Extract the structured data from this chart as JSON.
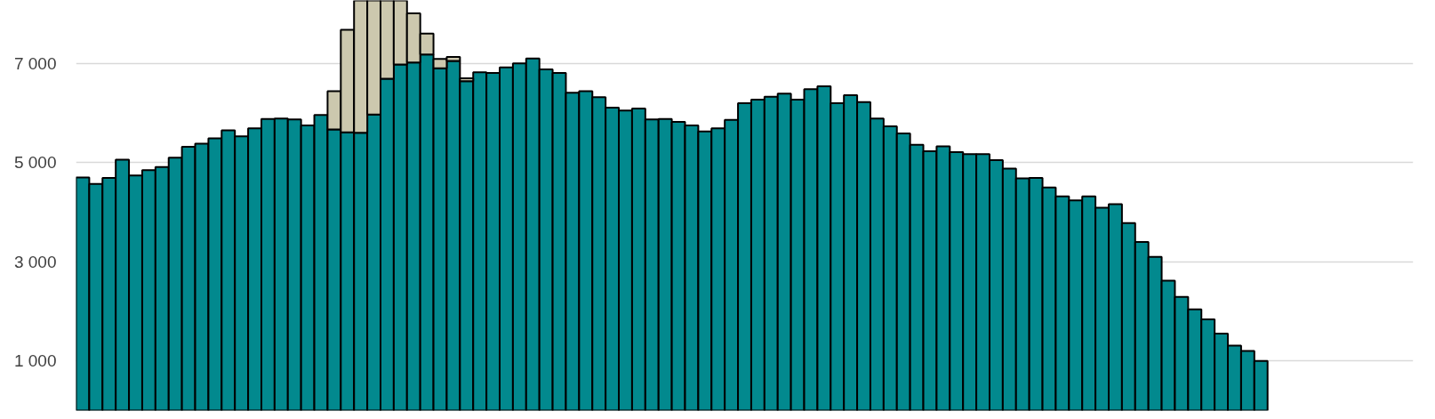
{
  "chart_data": {
    "type": "bar",
    "stacked": true,
    "categories": [
      null,
      null,
      null,
      null,
      null,
      null,
      null,
      null,
      null,
      null,
      null,
      null,
      null,
      null,
      null,
      null,
      null,
      null,
      null,
      null,
      null,
      null,
      null,
      null,
      null,
      null,
      null,
      null,
      null,
      null,
      null,
      null,
      null,
      null,
      null,
      null,
      null,
      null,
      null,
      null,
      null,
      null,
      null,
      null,
      null,
      null,
      null,
      null,
      null,
      null,
      null,
      null,
      null,
      null,
      null,
      null,
      null,
      null,
      null,
      null,
      null,
      null,
      null,
      null,
      null,
      null,
      null,
      null,
      null,
      null,
      null,
      null,
      null,
      null,
      null,
      null,
      null,
      null,
      null,
      null,
      null,
      null,
      null,
      null,
      null,
      null,
      null,
      null,
      null,
      null,
      null,
      null,
      null,
      null,
      null,
      null,
      null,
      null,
      null,
      null,
      null
    ],
    "series": [
      {
        "color": "#02898e",
        "values": [
          4700,
          4570,
          4690,
          5060,
          4740,
          4850,
          4910,
          5100,
          5320,
          5380,
          5490,
          5650,
          5530,
          5690,
          5880,
          5890,
          5870,
          5750,
          5960,
          5670,
          5610,
          5600,
          5970,
          6690,
          6980,
          7020,
          7180,
          6900,
          7050,
          6640,
          6820,
          6810,
          6920,
          7000,
          7100,
          6880,
          6810,
          6410,
          6440,
          6320,
          6110,
          6050,
          6090,
          5870,
          5880,
          5820,
          5750,
          5630,
          5690,
          5860,
          6200,
          6270,
          6330,
          6390,
          6270,
          6480,
          6540,
          6200,
          6360,
          6220,
          5890,
          5730,
          5590,
          5360,
          5230,
          5330,
          5210,
          5170,
          5170,
          5050,
          4880,
          4680,
          4690,
          4500,
          4320,
          4240,
          4320,
          4090,
          4160,
          3780,
          3400,
          3100,
          2620,
          2290,
          2040,
          1840,
          1550,
          1310,
          1200,
          1000,
          null,
          null,
          null,
          null,
          null,
          null,
          null,
          null,
          null,
          null,
          null
        ]
      },
      {
        "color": "#ccc8ae",
        "values": [
          null,
          null,
          null,
          null,
          null,
          null,
          null,
          null,
          null,
          null,
          null,
          null,
          null,
          null,
          null,
          null,
          null,
          null,
          null,
          770,
          2070,
          2670,
          2300,
          1580,
          1290,
          990,
          420,
          190,
          80,
          60,
          null,
          null,
          null,
          null,
          null,
          null,
          null,
          null,
          null,
          null,
          null,
          null,
          null,
          null,
          null,
          null,
          null,
          null,
          null,
          null,
          null,
          null,
          null,
          null,
          null,
          null,
          null,
          null,
          null,
          null,
          null,
          null,
          null,
          null,
          null,
          null,
          null,
          null,
          null,
          null,
          null,
          null,
          null,
          null,
          null,
          null,
          null,
          null,
          null,
          null,
          null,
          null,
          null,
          null,
          null,
          null,
          null,
          null,
          null,
          null,
          null,
          null,
          null,
          null,
          null,
          null,
          null,
          null,
          null,
          null,
          null
        ]
      }
    ],
    "ylim": [
      0,
      8270
    ],
    "yticks": [
      {
        "value": 1000,
        "label": "1 000"
      },
      {
        "value": 3000,
        "label": "3 000"
      },
      {
        "value": 5000,
        "label": "5 000"
      },
      {
        "value": 7000,
        "label": "7 000"
      }
    ],
    "grid": "y",
    "tick_labels": "y"
  }
}
